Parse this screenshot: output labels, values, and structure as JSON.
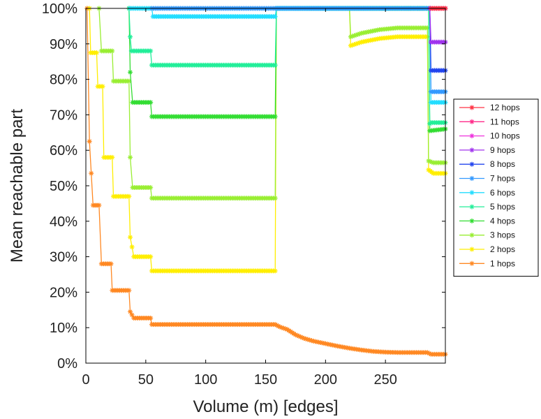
{
  "chart_data": {
    "type": "line",
    "title": "",
    "xlabel": "Volume (m) [edges]",
    "ylabel": "Mean reachable part",
    "xlim": [
      0,
      300
    ],
    "ylim": [
      0,
      100
    ],
    "x_ticks": [
      0,
      50,
      100,
      150,
      200,
      250
    ],
    "y_ticks": [
      0,
      10,
      20,
      30,
      40,
      50,
      60,
      70,
      80,
      90,
      100
    ],
    "y_tick_labels": [
      "0%",
      "10%",
      "20%",
      "30%",
      "40%",
      "50%",
      "60%",
      "70%",
      "80%",
      "90%",
      "100%"
    ],
    "legend_position": "right",
    "series": [
      {
        "name": "12 hops",
        "color": "#ff3344",
        "points": [
          [
            288,
            100
          ],
          [
            300,
            100
          ]
        ]
      },
      {
        "name": "11 hops",
        "color": "#ff2b8a",
        "points": [
          [
            288,
            100
          ],
          [
            300,
            100
          ]
        ]
      },
      {
        "name": "10 hops",
        "color": "#ee33dd",
        "points": [
          [
            288,
            100
          ],
          [
            300,
            100
          ]
        ]
      },
      {
        "name": "9 hops",
        "color": "#a033ee",
        "points": [
          [
            287,
            100
          ],
          [
            288,
            90.5
          ],
          [
            300,
            90.5
          ]
        ]
      },
      {
        "name": "8 hops",
        "color": "#2244ee",
        "points": [
          [
            287,
            100
          ],
          [
            288,
            82.5
          ],
          [
            300,
            82.5
          ]
        ]
      },
      {
        "name": "7 hops",
        "color": "#3399ff",
        "points": [
          [
            55,
            100
          ],
          [
            287,
            100
          ],
          [
            288,
            76.5
          ],
          [
            300,
            76.5
          ]
        ]
      },
      {
        "name": "6 hops",
        "color": "#22ddff",
        "points": [
          [
            37,
            100
          ],
          [
            55,
            100
          ],
          [
            56,
            97.7
          ],
          [
            158,
            97.7
          ],
          [
            159,
            100
          ],
          [
            287,
            100
          ],
          [
            288,
            73.5
          ],
          [
            300,
            73.5
          ]
        ]
      },
      {
        "name": "5 hops",
        "color": "#22ee99",
        "points": [
          [
            36,
            100
          ],
          [
            37,
            92
          ],
          [
            38,
            88
          ],
          [
            54,
            88
          ],
          [
            55,
            84
          ],
          [
            158,
            84
          ],
          [
            159,
            100
          ],
          [
            286,
            100
          ],
          [
            287,
            67.5
          ],
          [
            288,
            67.8
          ],
          [
            300,
            67.8
          ]
        ]
      },
      {
        "name": "4 hops",
        "color": "#33dd33",
        "points": [
          [
            36,
            100
          ],
          [
            37,
            82
          ],
          [
            39,
            73.5
          ],
          [
            54,
            73.5
          ],
          [
            55,
            69.5
          ],
          [
            158,
            69.5
          ],
          [
            159,
            100
          ],
          [
            286,
            100
          ],
          [
            287,
            65.5
          ],
          [
            300,
            66
          ]
        ]
      },
      {
        "name": "3 hops",
        "color": "#99ee33",
        "points": [
          [
            11,
            100
          ],
          [
            13,
            88
          ],
          [
            22,
            88
          ],
          [
            23,
            79.5
          ],
          [
            36,
            79.5
          ],
          [
            37,
            58
          ],
          [
            39,
            49.5
          ],
          [
            54,
            49.5
          ],
          [
            55,
            46.5
          ],
          [
            158,
            46.5
          ],
          [
            159,
            100
          ],
          [
            220,
            100
          ],
          [
            221,
            92
          ],
          [
            230,
            93
          ],
          [
            245,
            94
          ],
          [
            260,
            94.5
          ],
          [
            285,
            94.5
          ],
          [
            286,
            57
          ],
          [
            290,
            56.5
          ],
          [
            300,
            56.5
          ]
        ]
      },
      {
        "name": "2 hops",
        "color": "#ffee00",
        "points": [
          [
            3,
            100
          ],
          [
            4,
            87.5
          ],
          [
            9,
            87.5
          ],
          [
            10,
            78
          ],
          [
            14,
            78
          ],
          [
            15,
            58
          ],
          [
            22,
            58
          ],
          [
            23,
            47
          ],
          [
            36,
            47
          ],
          [
            37,
            35.5
          ],
          [
            40,
            30
          ],
          [
            54,
            30
          ],
          [
            55,
            26
          ],
          [
            158,
            26
          ],
          [
            159,
            100
          ],
          [
            220,
            100
          ],
          [
            221,
            89.5
          ],
          [
            230,
            90.5
          ],
          [
            245,
            91.5
          ],
          [
            260,
            92
          ],
          [
            285,
            92
          ],
          [
            286,
            54.5
          ],
          [
            290,
            53.5
          ],
          [
            300,
            53.5
          ]
        ]
      },
      {
        "name": "1 hops",
        "color": "#ff8822",
        "points": [
          [
            1,
            100
          ],
          [
            3,
            62.5
          ],
          [
            6,
            44.5
          ],
          [
            11,
            44.5
          ],
          [
            13,
            28
          ],
          [
            21,
            28
          ],
          [
            22,
            20.5
          ],
          [
            36,
            20.5
          ],
          [
            37,
            14.5
          ],
          [
            40,
            12.7
          ],
          [
            54,
            12.7
          ],
          [
            55,
            10.9
          ],
          [
            158,
            10.9
          ],
          [
            162,
            10.2
          ],
          [
            168,
            9.5
          ],
          [
            175,
            8
          ],
          [
            182,
            7
          ],
          [
            190,
            6.2
          ],
          [
            200,
            5.5
          ],
          [
            210,
            4.8
          ],
          [
            220,
            4.2
          ],
          [
            230,
            3.7
          ],
          [
            240,
            3.3
          ],
          [
            250,
            3.1
          ],
          [
            260,
            3
          ],
          [
            270,
            3
          ],
          [
            285,
            3
          ],
          [
            288,
            2.5
          ],
          [
            300,
            2.5
          ]
        ]
      }
    ]
  }
}
